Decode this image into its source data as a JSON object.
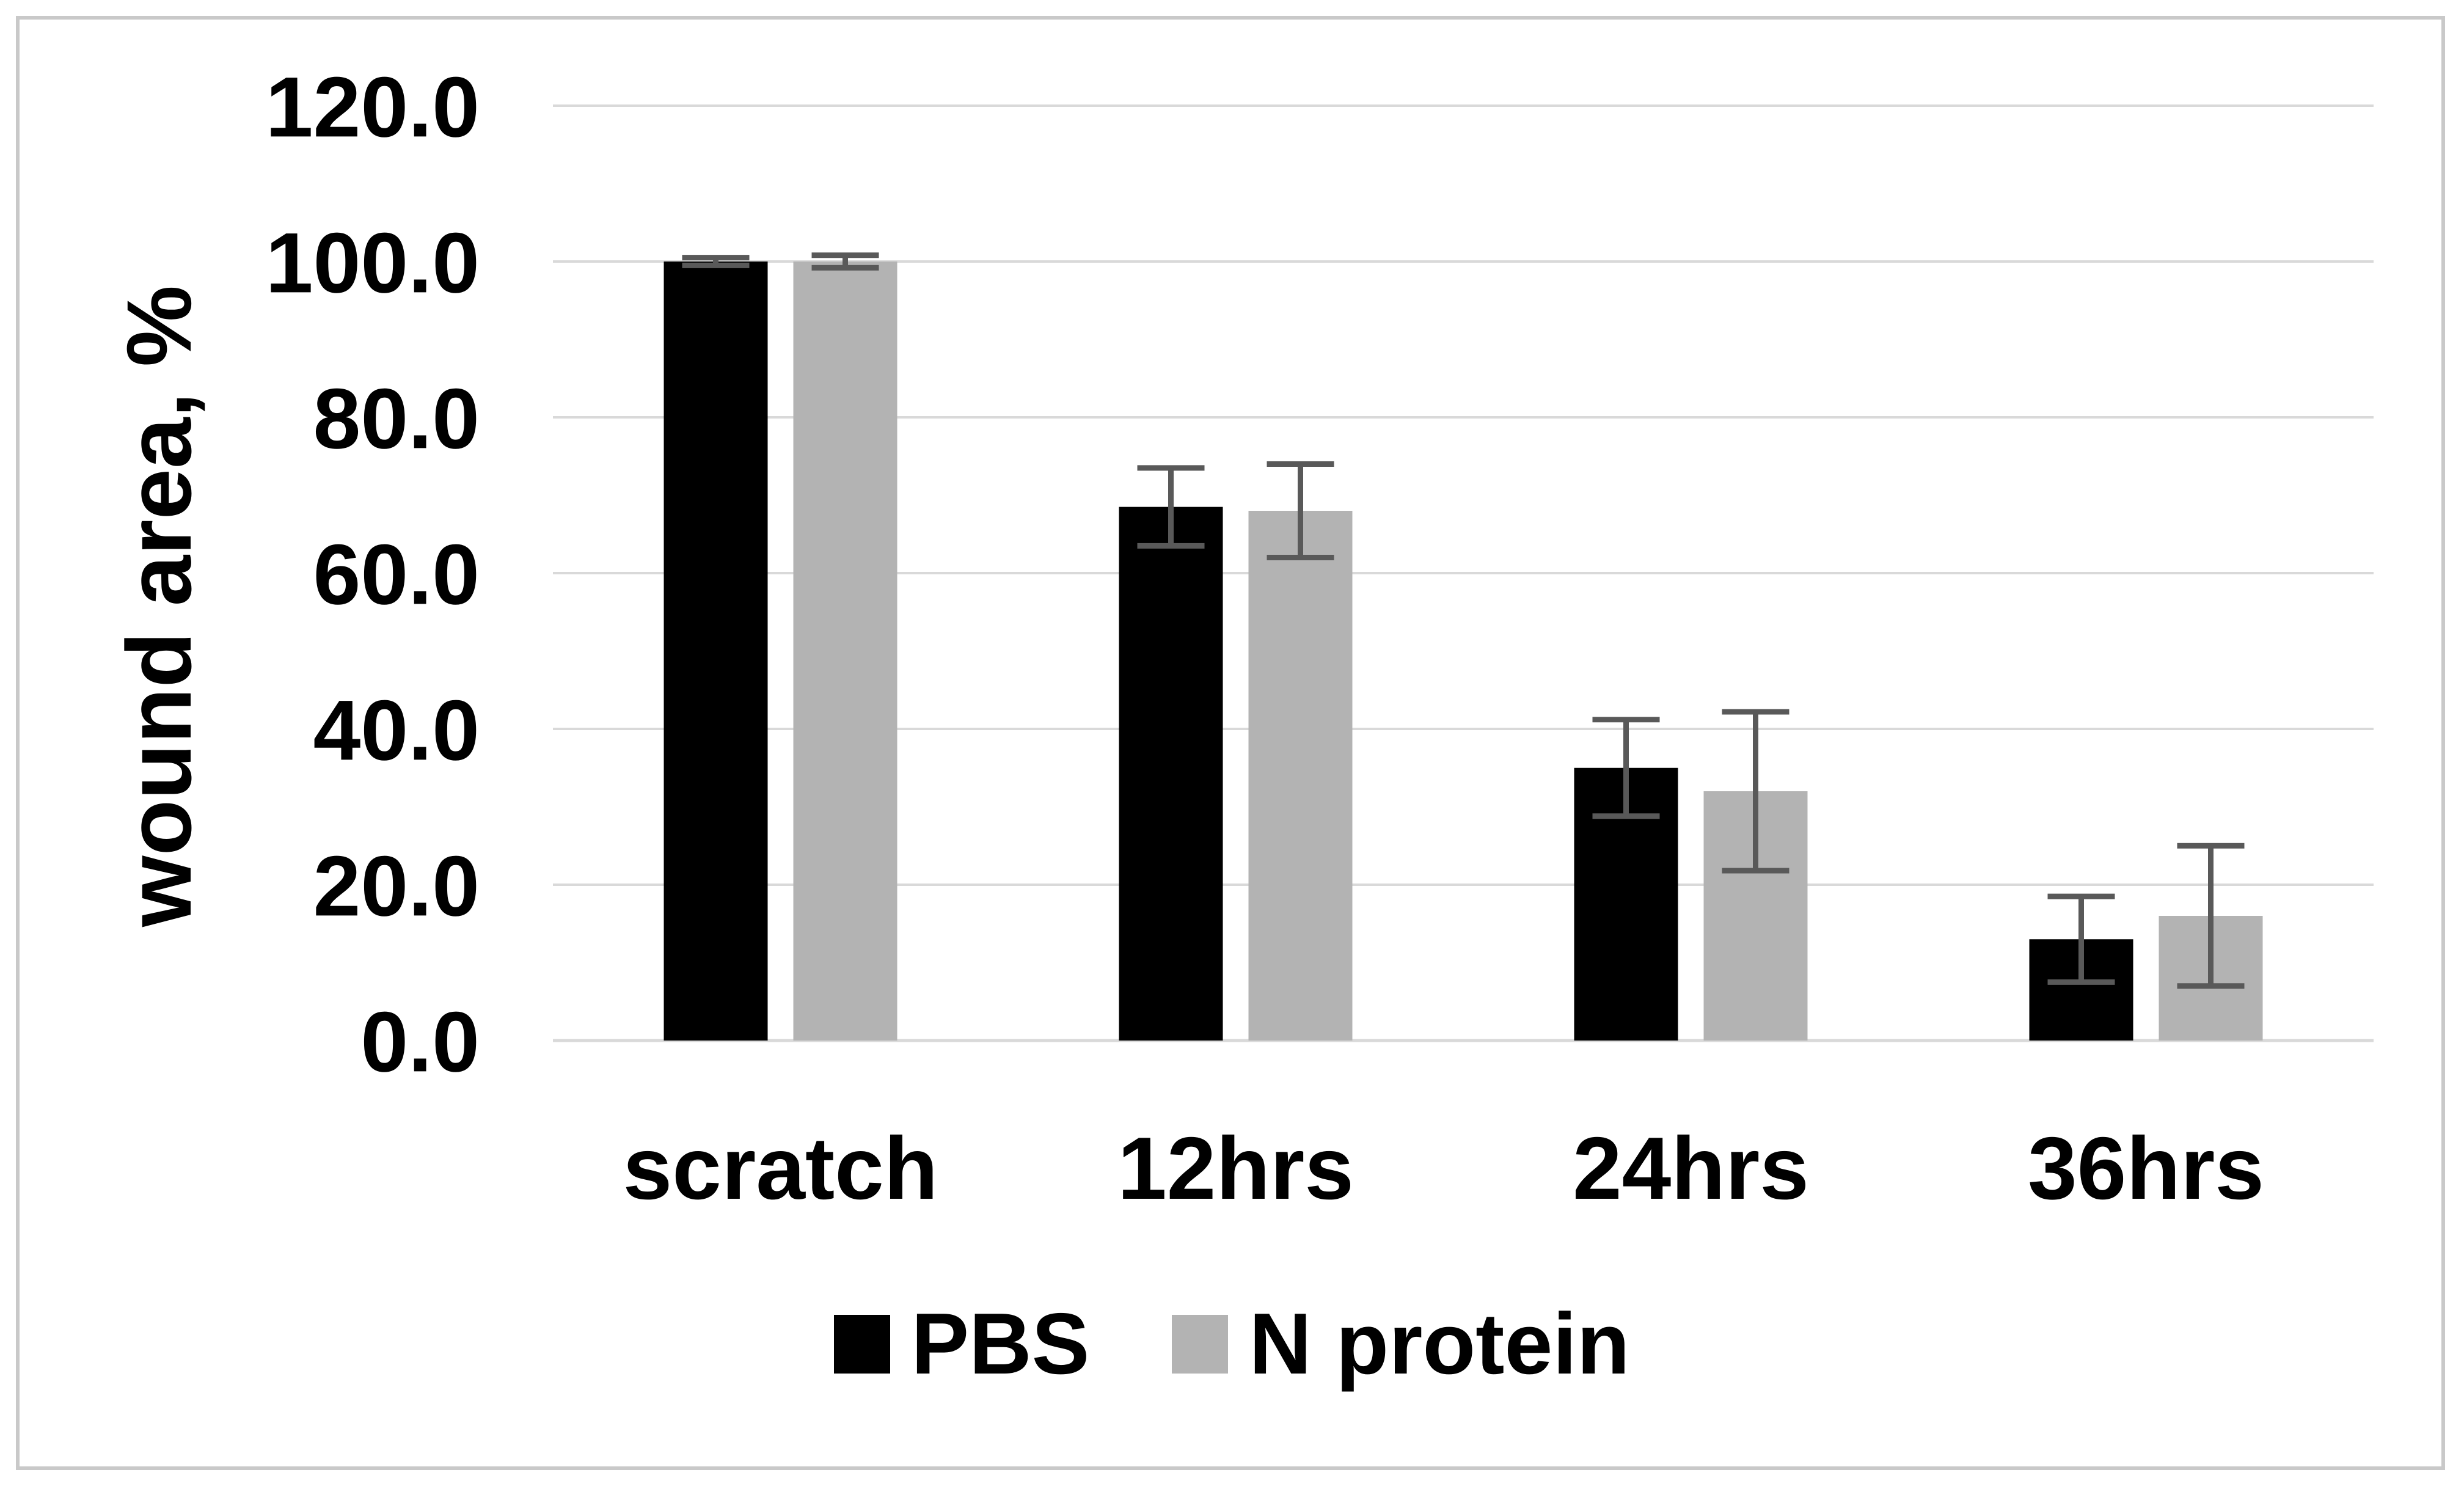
{
  "figure": {
    "background": "#ffffff",
    "border_color": "#c9c9c9"
  },
  "chart_data": {
    "type": "bar",
    "title": "",
    "xlabel": "",
    "ylabel": "wound area, %",
    "categories": [
      "scratch",
      "12hrs",
      "24hrs",
      "36hrs"
    ],
    "series": [
      {
        "name": "PBS",
        "color": "#000000",
        "values": [
          100.0,
          68.5,
          35.0,
          13.0
        ],
        "errors": [
          0.5,
          5.0,
          6.2,
          5.5
        ]
      },
      {
        "name": "N protein",
        "color": "#b3b3b3",
        "values": [
          100.0,
          68.0,
          32.0,
          16.0
        ],
        "errors": [
          0.8,
          6.0,
          10.2,
          9.0
        ]
      }
    ],
    "ylim": [
      0,
      120
    ],
    "ytick_step": 20,
    "ytick_labels": [
      "0.0",
      "20.0",
      "40.0",
      "60.0",
      "80.0",
      "100.0",
      "120.0"
    ],
    "grid": true,
    "gridline_color": "#d9d9d9",
    "error_bar_color": "#595959",
    "legend_position": "bottom"
  }
}
